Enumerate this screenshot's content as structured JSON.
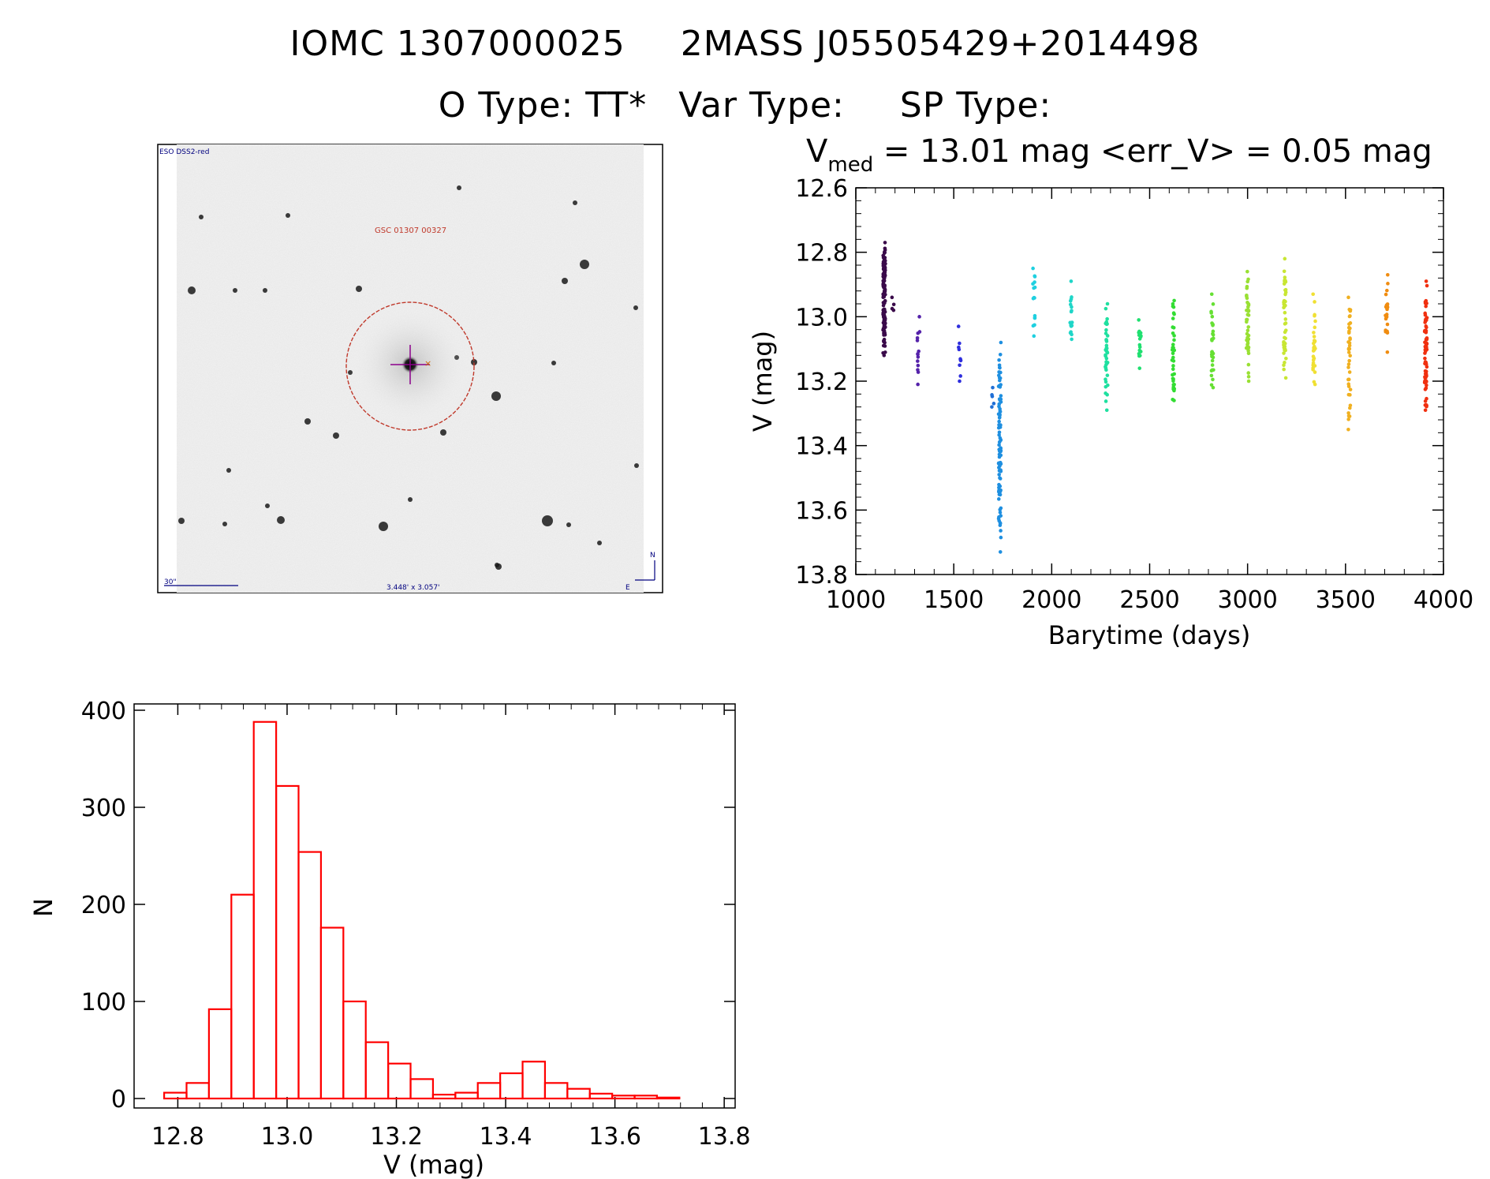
{
  "header": {
    "line1": [
      "IOMC 1307000025",
      "2MASS J05505429+2014498"
    ],
    "line2": {
      "otype": "O Type: TT*",
      "vartype": "Var Type:",
      "sptype": "SP Type:"
    }
  },
  "finder": {
    "survey_label": "ESO DSS2-red",
    "object_label": "GSC 01307 00327",
    "scale_label": "30\"",
    "fov_label": "3.448' x 3.057'",
    "north_label": "N",
    "east_label": "E",
    "colors": {
      "circle": "#c0392b",
      "cross": "#8b008b",
      "labels": "#00007f"
    }
  },
  "chart_data": [
    {
      "type": "scatter",
      "title_parts": {
        "v": "V",
        "sub": "med",
        "rest": " = 13.01 mag <err_V> = 0.05 mag"
      },
      "xlabel": "Barytime (days)",
      "ylabel": "V (mag)",
      "xlim": [
        1000,
        4000
      ],
      "ylim": [
        13.8,
        12.6
      ],
      "y_inverted": true,
      "xticks": [
        "1000",
        "1500",
        "2000",
        "2500",
        "3000",
        "3500",
        "4000"
      ],
      "yticks": [
        "12.6",
        "12.8",
        "13.0",
        "13.2",
        "13.4",
        "13.6",
        "13.8"
      ],
      "groups": [
        {
          "x": 1145,
          "ymin": 12.77,
          "ymax": 13.12,
          "n": 120,
          "color": "#3a0a4a"
        },
        {
          "x": 1190,
          "ymin": 12.94,
          "ymax": 12.98,
          "n": 4,
          "color": "#3a0a4a"
        },
        {
          "x": 1320,
          "ymin": 13.0,
          "ymax": 13.21,
          "n": 14,
          "color": "#5522aa"
        },
        {
          "x": 1530,
          "ymin": 13.03,
          "ymax": 13.2,
          "n": 10,
          "color": "#2e2edd"
        },
        {
          "x": 1700,
          "ymin": 13.22,
          "ymax": 13.28,
          "n": 5,
          "color": "#1f6fd6"
        },
        {
          "x": 1735,
          "ymin": 13.08,
          "ymax": 13.73,
          "n": 90,
          "color": "#1e8fe0"
        },
        {
          "x": 1910,
          "ymin": 12.85,
          "ymax": 13.06,
          "n": 16,
          "color": "#1fd0e0"
        },
        {
          "x": 2100,
          "ymin": 12.89,
          "ymax": 13.07,
          "n": 18,
          "color": "#1fd6c8"
        },
        {
          "x": 2280,
          "ymin": 12.96,
          "ymax": 13.29,
          "n": 40,
          "color": "#1fe0a0"
        },
        {
          "x": 2450,
          "ymin": 13.01,
          "ymax": 13.16,
          "n": 16,
          "color": "#1fe070"
        },
        {
          "x": 2620,
          "ymin": 12.95,
          "ymax": 13.26,
          "n": 36,
          "color": "#33dd33"
        },
        {
          "x": 2820,
          "ymin": 12.93,
          "ymax": 13.22,
          "n": 30,
          "color": "#66e033"
        },
        {
          "x": 3000,
          "ymin": 12.86,
          "ymax": 13.2,
          "n": 45,
          "color": "#99e033"
        },
        {
          "x": 3190,
          "ymin": 12.82,
          "ymax": 13.19,
          "n": 45,
          "color": "#c8e633"
        },
        {
          "x": 3340,
          "ymin": 12.93,
          "ymax": 13.21,
          "n": 30,
          "color": "#f0e033"
        },
        {
          "x": 3520,
          "ymin": 12.94,
          "ymax": 13.35,
          "n": 40,
          "color": "#f0b020"
        },
        {
          "x": 3710,
          "ymin": 12.87,
          "ymax": 13.11,
          "n": 24,
          "color": "#f08c10"
        },
        {
          "x": 3910,
          "ymin": 12.89,
          "ymax": 13.29,
          "n": 70,
          "color": "#f03010"
        }
      ]
    },
    {
      "type": "bar",
      "subtype": "histogram",
      "xlabel": "V (mag)",
      "ylabel": "N",
      "xlim": [
        12.75,
        13.8
      ],
      "ylim": [
        0,
        400
      ],
      "xticks": [
        "12.8",
        "13.0",
        "13.2",
        "13.4",
        "13.6",
        "13.8"
      ],
      "yticks": [
        "0",
        "100",
        "200",
        "300",
        "400"
      ],
      "bin_width": 0.041,
      "bin_start": 12.775,
      "values": [
        6,
        16,
        92,
        210,
        388,
        322,
        254,
        176,
        100,
        58,
        36,
        20,
        4,
        6,
        16,
        26,
        38,
        16,
        10,
        5,
        3,
        3,
        1
      ],
      "bar_color": "#ff0000"
    }
  ]
}
